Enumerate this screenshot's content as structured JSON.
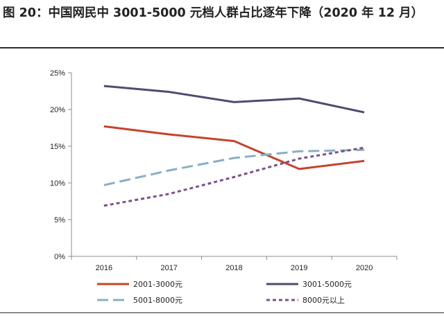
{
  "figure": {
    "title": "图 20：中国网民中 3001-5000 元档人群占比逐年下降（2020 年 12 月）"
  },
  "chart_data": {
    "type": "line",
    "title": "",
    "xlabel": "",
    "ylabel": "",
    "categories": [
      "2016",
      "2017",
      "2018",
      "2019",
      "2020"
    ],
    "ylim": [
      0,
      25
    ],
    "yticks": [
      "0%",
      "5%",
      "10%",
      "15%",
      "20%",
      "25%"
    ],
    "grid": false,
    "legend_position": "bottom",
    "series": [
      {
        "name": "2001-3000元",
        "values": [
          17.7,
          16.6,
          15.7,
          11.9,
          13.0
        ],
        "color": "#c8412b",
        "style": "solid"
      },
      {
        "name": "3001-5000元",
        "values": [
          23.2,
          22.4,
          21.0,
          21.5,
          19.6
        ],
        "color": "#4f4a6e",
        "style": "solid"
      },
      {
        "name": "5001-8000元",
        "values": [
          9.7,
          11.7,
          13.4,
          14.3,
          14.5
        ],
        "color": "#87afc4",
        "style": "dashed"
      },
      {
        "name": "8000元以上",
        "values": [
          6.9,
          8.5,
          10.8,
          13.3,
          14.8
        ],
        "color": "#7c4f8c",
        "style": "dotted"
      }
    ]
  }
}
